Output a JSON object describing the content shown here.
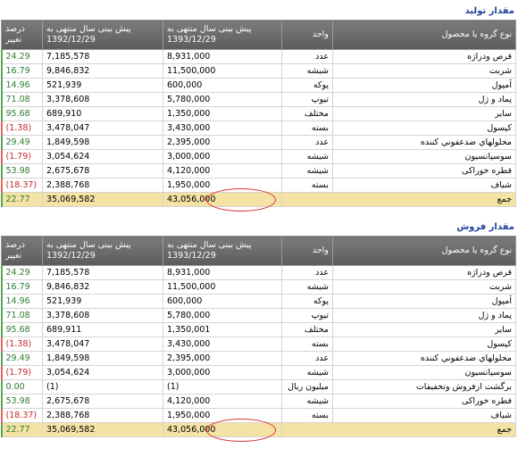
{
  "sections": [
    {
      "title": "مقدار تولید",
      "table": {
        "header": [
          "نوع گروه یا محصول",
          "واحد",
          "پیش بینی سال منتهی به 1393/12/29",
          "پیش بینی سال منتهی به 1392/12/29",
          "درصد تغییر"
        ],
        "rows": [
          [
            "قرص ودراژه",
            "عدد",
            "8,931,000",
            "7,185,578",
            "24.29"
          ],
          [
            "شربت",
            "شیشه",
            "11,500,000",
            "9,846,832",
            "16.79"
          ],
          [
            "آمپول",
            "پوکه",
            "600,000",
            "521,939",
            "14.96"
          ],
          [
            "پماد و ژل",
            "تیوپ",
            "5,780,000",
            "3,378,608",
            "71.08"
          ],
          [
            "سایر",
            "مختلف",
            "1,350,000",
            "689,910",
            "95.68"
          ],
          [
            "کپسول",
            "بسته",
            "3,430,000",
            "3,478,047",
            "(1.38)"
          ],
          [
            "محلولهاي ضدعفوني كننده",
            "عدد",
            "2,395,000",
            "1,849,598",
            "29.49"
          ],
          [
            "سوسپانسیون",
            "شیشه",
            "3,000,000",
            "3,054,624",
            "(1.79)"
          ],
          [
            "قطره خوراکی",
            "شیشه",
            "4,120,000",
            "2,675,678",
            "53.98"
          ],
          [
            "شیاف",
            "بسته",
            "1,950,000",
            "2,388,768",
            "(18.37)"
          ]
        ],
        "total": {
          "label": "جمع",
          "values": [
            "43,056,000",
            "35,069,582",
            "22.77"
          ]
        }
      }
    },
    {
      "title": "مقدار فروش",
      "table": {
        "header": [
          "نوع گروه یا محصول",
          "واحد",
          "پیش بینی سال منتهی به 1393/12/29",
          "پیش بینی سال منتهی به 1392/12/29",
          "درصد تغییر"
        ],
        "rows": [
          [
            "قرص ودراژه",
            "عدد",
            "8,931,000",
            "7,185,578",
            "24.29"
          ],
          [
            "شربت",
            "شیشه",
            "11,500,000",
            "9,846,832",
            "16.79"
          ],
          [
            "آمپول",
            "پوکه",
            "600,000",
            "521,939",
            "14.96"
          ],
          [
            "پماد و ژل",
            "تیوپ",
            "5,780,000",
            "3,378,608",
            "71.08"
          ],
          [
            "سایر",
            "مختلف",
            "1,350,001",
            "689,911",
            "95.68"
          ],
          [
            "کپسول",
            "بسته",
            "3,430,000",
            "3,478,047",
            "(1.38)"
          ],
          [
            "محلولهاي ضدعفوني كننده",
            "عدد",
            "2,395,000",
            "1,849,598",
            "29.49"
          ],
          [
            "سوسپانسیون",
            "شیشه",
            "3,000,000",
            "3,054,624",
            "(1.79)"
          ],
          [
            "برگشت ازفروش وتخفیفات",
            "میلیون ریال",
            "(1)",
            "(1)",
            "0.00"
          ],
          [
            "قطره خوراکی",
            "شیشه",
            "4,120,000",
            "2,675,678",
            "53.98"
          ],
          [
            "شیاف",
            "بسته",
            "1,950,000",
            "2,388,768",
            "(18.37)"
          ]
        ],
        "total": {
          "label": "جمع",
          "values": [
            "43,056,000",
            "35,069,582",
            "22.77"
          ]
        }
      }
    }
  ]
}
